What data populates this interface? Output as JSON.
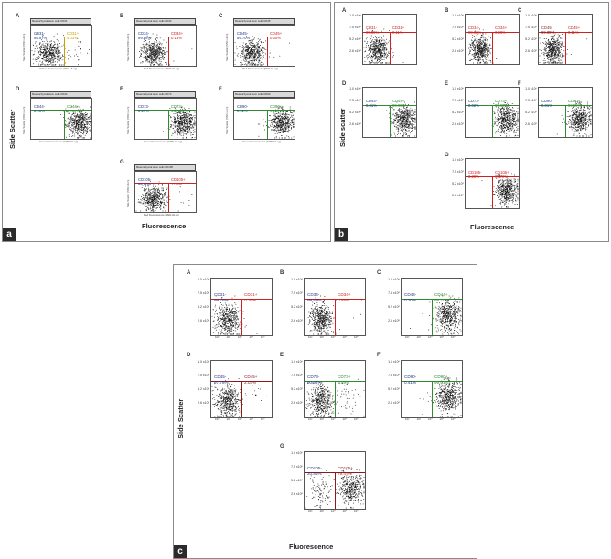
{
  "figure": {
    "panel_a": {
      "letter": "a",
      "y_title": "Side Scatter",
      "x_title": "Fluorescence",
      "subplots": [
        {
          "letter": "A",
          "header": "Mesenchymal stem cells CD31",
          "x_axis": "Yellow Fluorescence (YEL-HLog)",
          "y_axis": "Side Scatter (SSC-HLin)",
          "neg": "CD31-\n95.97%",
          "pos": "CD31+\n4.03%",
          "neg_color": "#1f3a8a",
          "pos_color": "#c8a000"
        },
        {
          "letter": "B",
          "header": "Mesenchymal stem cells CD34",
          "x_axis": "Red Fluorescence (RED-HLog)",
          "y_axis": "Side Scatter (SSC-HLin)",
          "neg": "CD34-\n99.86%",
          "pos": "CD34+\n0.15%",
          "neg_color": "#1f3a8a",
          "pos_color": "#cc2222"
        },
        {
          "letter": "C",
          "header": "Mesenchymal stem cells CD45",
          "x_axis": "Red Fluorescence (RED-HLog)",
          "y_axis": "Side Scatter (SSC-HLin)",
          "neg": "CD45-\n99.70%",
          "pos": "CD45+\n0.30%",
          "neg_color": "#1f3a8a",
          "pos_color": "#cc2222"
        },
        {
          "letter": "D",
          "header": "Mesenchymal stem cells CD44",
          "x_axis": "Green Fluorescence (GRN-HLog)",
          "y_axis": "Side Scatter (SSC-HLin)",
          "neg": "CD44-\n0.15%",
          "pos": "CD44+\n99.85%",
          "neg_color": "#1f3a8a",
          "pos_color": "#2e8b2e"
        },
        {
          "letter": "E",
          "header": "Mesenchymal stem cells CD73",
          "x_axis": "Green Fluorescence (GRN-HLog)",
          "y_axis": "Side Scatter (SSC-HLin)",
          "neg": "CD73-\n0.27%",
          "pos": "CD73+\n99.73%",
          "neg_color": "#1f3a8a",
          "pos_color": "#2e8b2e"
        },
        {
          "letter": "F",
          "header": "Mesenchymal stem cells CD90",
          "x_axis": "Green Fluorescence (GRN-HLog)",
          "y_axis": "Side Scatter (SSC-HLin)",
          "neg": "CD90-\n0.11%",
          "pos": "CD90+\n99.89%",
          "neg_color": "#1f3a8a",
          "pos_color": "#2e8b2e"
        },
        {
          "letter": "G",
          "header": "Mesenchymal stem cells CD105",
          "x_axis": "Red Fluorescence (RED-HLog)",
          "y_axis": "Side Scatter (SSC-HLin)",
          "neg": "CD105-\n98.00%",
          "pos": "CD105+\n2.00%",
          "neg_color": "#1f3a8a",
          "pos_color": "#cc2222"
        }
      ]
    },
    "panel_b": {
      "letter": "b",
      "y_title": "Side scatter",
      "x_title": "Fluorescence",
      "subplots": [
        {
          "letter": "A",
          "neg": "CD31-\n99.89%",
          "pos": "CD31+\n0.11%",
          "neg_color": "#cc2222",
          "pos_color": "#cc2222"
        },
        {
          "letter": "B",
          "neg": "CD34-\n99.92%",
          "pos": "CD34+\n0.08%",
          "neg_color": "#cc2222",
          "pos_color": "#cc2222"
        },
        {
          "letter": "C",
          "neg": "CD45-\n99.89%",
          "pos": "CD45+\n0.11%",
          "neg_color": "#8b1a1a",
          "pos_color": "#cc2222"
        },
        {
          "letter": "D",
          "neg": "CD44-\n0.01%",
          "pos": "CD44+\n99.99%",
          "neg_color": "#1f3a8a",
          "pos_color": "#2e8b2e"
        },
        {
          "letter": "E",
          "neg": "CD73-\n0.02%",
          "pos": "CD73+\n99.98%",
          "neg_color": "#1f3a8a",
          "pos_color": "#2e8b2e"
        },
        {
          "letter": "F",
          "neg": "CD90-\n0.01%",
          "pos": "CD90+\n99.99%",
          "neg_color": "#1f3a8a",
          "pos_color": "#2e8b2e"
        },
        {
          "letter": "G",
          "neg": "CD105-\n0.28%",
          "pos": "CD105+\n99.79%",
          "neg_color": "#cc2222",
          "pos_color": "#cc2222"
        }
      ],
      "yticks": [
        "1.0 x10⁶",
        "7.5 x10⁵",
        "5.2 x10⁵",
        "2.6 x10⁵"
      ]
    },
    "panel_c": {
      "letter": "c",
      "y_title": "Side Scatter",
      "x_title": "Fluorescence",
      "subplots": [
        {
          "letter": "A",
          "neg": "CD31-\n99.76%",
          "pos": "CD31+\n0.16%",
          "neg_color": "#2a3580",
          "pos_color": "#cc2222"
        },
        {
          "letter": "B",
          "neg": "CD34-\n99.58%",
          "pos": "CD34+\n0.58%",
          "neg_color": "#2a3580",
          "pos_color": "#cc2222"
        },
        {
          "letter": "C",
          "neg": "CD44-\n0.30%",
          "pos": "CD44+\n99.70%",
          "neg_color": "#2a3580",
          "pos_color": "#2e8b2e"
        },
        {
          "letter": "D",
          "neg": "CD45-\n97.78%",
          "pos": "CD45+\n2.03%",
          "neg_color": "#2a3580",
          "pos_color": "#8b1a1a"
        },
        {
          "letter": "E",
          "neg": "CD73-\n90.94%",
          "pos": "CD73+\n9.59%",
          "neg_color": "#2a3580",
          "pos_color": "#2e8b2e"
        },
        {
          "letter": "F",
          "neg": "CD90-\n0.41%",
          "pos": "CD90+\n99.61%",
          "neg_color": "#2a3580",
          "pos_color": "#2e8b2e"
        },
        {
          "letter": "G",
          "neg": "CD105-\n20.85%",
          "pos": "CD105+\n79.47%",
          "neg_color": "#2a3580",
          "pos_color": "#8b1a1a"
        }
      ],
      "yticks": [
        "1.0 x10⁶",
        "7.5 x10⁵",
        "5.2 x10⁵",
        "2.6 x10⁵"
      ],
      "xticks": [
        "10²",
        "10³",
        "10⁴",
        "10⁵",
        "10⁶"
      ]
    }
  }
}
